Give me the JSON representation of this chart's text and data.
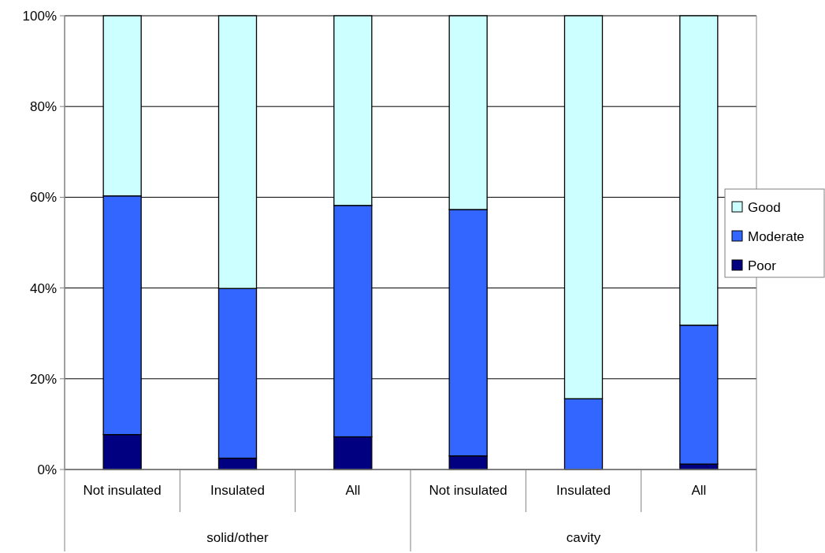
{
  "chart_data": {
    "type": "bar",
    "stacked": true,
    "categories": [
      "Not insulated",
      "Insulated",
      "All",
      "Not insulated",
      "Insulated",
      "All"
    ],
    "series": [
      {
        "name": "Poor",
        "color": "#000080",
        "values": [
          7.7,
          2.5,
          7.2,
          3.0,
          0,
          1.2
        ]
      },
      {
        "name": "Moderate",
        "color": "#3366ff",
        "values": [
          52.6,
          37.4,
          51.0,
          54.3,
          15.6,
          30.6
        ]
      },
      {
        "name": "Good",
        "color": "#ccffff",
        "values": [
          39.7,
          60.1,
          41.8,
          42.7,
          84.4,
          68.2
        ]
      }
    ],
    "ylim": [
      0,
      100
    ],
    "yticks": [
      {
        "value": 0,
        "label": "0%"
      },
      {
        "value": 20,
        "label": "20%"
      },
      {
        "value": 40,
        "label": "40%"
      },
      {
        "value": 60,
        "label": "60%"
      },
      {
        "value": 80,
        "label": "80%"
      },
      {
        "value": 100,
        "label": "100%"
      }
    ],
    "grid": "y",
    "legend": "right",
    "annotations": [
      "solid/other",
      "cavity"
    ]
  }
}
